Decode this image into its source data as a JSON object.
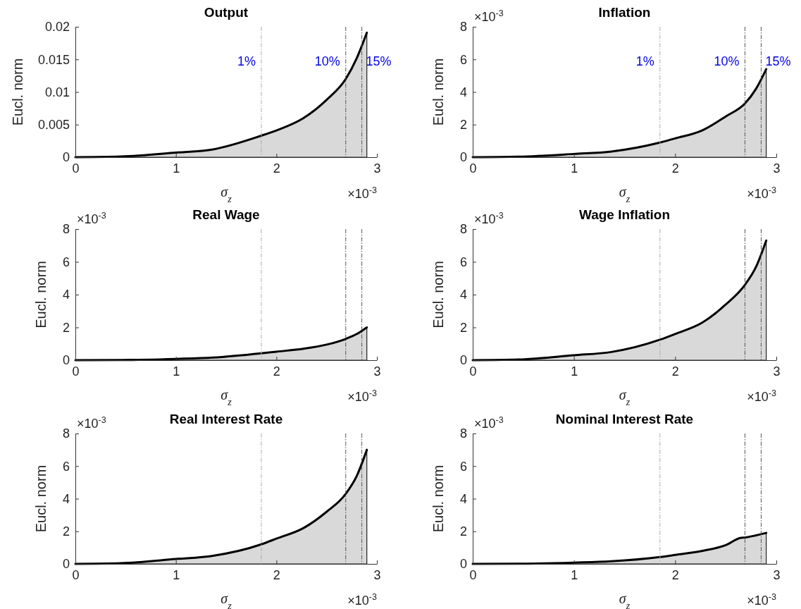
{
  "chart_data": [
    {
      "type": "area",
      "title": "Output",
      "xlabel": "σ$_{z}$",
      "ylabel": "Eucl. norm",
      "xlim": [
        0,
        3
      ],
      "xticks": [
        0,
        1,
        2,
        3
      ],
      "ylim": [
        0,
        0.02
      ],
      "yticks": [
        0,
        0.005,
        0.01,
        0.015,
        0.02
      ],
      "grid": false,
      "x": [
        0,
        0.45,
        1,
        1.37,
        1.85,
        2.0,
        2.27,
        2.5,
        2.69,
        2.8,
        2.9
      ],
      "series": [
        {
          "color": "#d9d9d9",
          "values": [
            0,
            0.0001,
            0.0007,
            0.0012,
            0.0033,
            0.0041,
            0.006,
            0.0088,
            0.012,
            0.0152,
            0.0191
          ]
        }
      ],
      "ref_lines": [
        {
          "axis": "x",
          "value": 1.85,
          "color": "#aaaaaa",
          "line_style": "dashed"
        },
        {
          "axis": "x",
          "value": 2.69,
          "color": "#555555",
          "line_style": "dashed"
        },
        {
          "axis": "x",
          "value": 2.85,
          "color": "#555555",
          "line_style": "dashed"
        }
      ],
      "annotations": [
        "×10$^{-3}$",
        "1%",
        "10%",
        "15%"
      ]
    },
    {
      "type": "area",
      "title": "Inflation",
      "xlabel": "σ$_{z}$",
      "ylabel": "Eucl. norm",
      "xlim": [
        0,
        3
      ],
      "xticks": [
        0,
        1,
        2,
        3
      ],
      "ylim": [
        0,
        8
      ],
      "yticks": [
        0,
        2,
        4,
        6,
        8
      ],
      "grid": false,
      "x": [
        0,
        0.45,
        1,
        1.37,
        1.85,
        2.0,
        2.27,
        2.5,
        2.69,
        2.8,
        2.9
      ],
      "series": [
        {
          "color": "#d9d9d9",
          "values": [
            0,
            0.03,
            0.2,
            0.35,
            0.9,
            1.15,
            1.65,
            2.5,
            3.3,
            4.2,
            5.4
          ]
        }
      ],
      "ref_lines": [
        {
          "axis": "x",
          "value": 1.85,
          "color": "#aaaaaa",
          "line_style": "dashed"
        },
        {
          "axis": "x",
          "value": 2.69,
          "color": "#555555",
          "line_style": "dashed"
        },
        {
          "axis": "x",
          "value": 2.85,
          "color": "#555555",
          "line_style": "dashed"
        }
      ],
      "annotations": [
        "×10$^{-3}$",
        "×10$^{-3}$",
        "1%",
        "10%",
        "15%"
      ]
    },
    {
      "type": "area",
      "title": "Real Wage",
      "xlabel": "σ$_{z}$",
      "ylabel": "Eucl. norm",
      "xlim": [
        0,
        3
      ],
      "xticks": [
        0,
        1,
        2,
        3
      ],
      "ylim": [
        0,
        8
      ],
      "yticks": [
        0,
        2,
        4,
        6,
        8
      ],
      "grid": false,
      "x": [
        0,
        0.45,
        1,
        1.37,
        1.85,
        2.0,
        2.27,
        2.5,
        2.69,
        2.8,
        2.9
      ],
      "series": [
        {
          "color": "#d9d9d9",
          "values": [
            0,
            0.01,
            0.08,
            0.16,
            0.42,
            0.52,
            0.7,
            0.95,
            1.3,
            1.6,
            2.0
          ]
        }
      ],
      "ref_lines": [
        {
          "axis": "x",
          "value": 1.85,
          "color": "#aaaaaa",
          "line_style": "dashed"
        },
        {
          "axis": "x",
          "value": 2.69,
          "color": "#555555",
          "line_style": "dashed"
        },
        {
          "axis": "x",
          "value": 2.85,
          "color": "#555555",
          "line_style": "dashed"
        }
      ],
      "annotations": [
        "×10$^{-3}$",
        "×10$^{-3}$"
      ]
    },
    {
      "type": "area",
      "title": "Wage Inflation",
      "xlabel": "σ$_{z}$",
      "ylabel": "Eucl. norm",
      "xlim": [
        0,
        3
      ],
      "xticks": [
        0,
        1,
        2,
        3
      ],
      "ylim": [
        0,
        8
      ],
      "yticks": [
        0,
        2,
        4,
        6,
        8
      ],
      "grid": false,
      "x": [
        0,
        0.45,
        1,
        1.37,
        1.85,
        2.0,
        2.27,
        2.5,
        2.69,
        2.8,
        2.9
      ],
      "series": [
        {
          "color": "#d9d9d9",
          "values": [
            0,
            0.04,
            0.3,
            0.5,
            1.25,
            1.6,
            2.3,
            3.4,
            4.6,
            5.7,
            7.3
          ]
        }
      ],
      "ref_lines": [
        {
          "axis": "x",
          "value": 1.85,
          "color": "#aaaaaa",
          "line_style": "dashed"
        },
        {
          "axis": "x",
          "value": 2.69,
          "color": "#555555",
          "line_style": "dashed"
        },
        {
          "axis": "x",
          "value": 2.85,
          "color": "#555555",
          "line_style": "dashed"
        }
      ],
      "annotations": [
        "×10$^{-3}$",
        "×10$^{-3}$"
      ]
    },
    {
      "type": "area",
      "title": "Real Interest Rate",
      "xlabel": "σ$_{z}$",
      "ylabel": "Eucl. norm",
      "xlim": [
        0,
        3
      ],
      "xticks": [
        0,
        1,
        2,
        3
      ],
      "ylim": [
        0,
        8
      ],
      "yticks": [
        0,
        2,
        4,
        6,
        8
      ],
      "grid": false,
      "x": [
        0,
        0.45,
        1,
        1.37,
        1.85,
        2.0,
        2.27,
        2.5,
        2.69,
        2.8,
        2.9
      ],
      "series": [
        {
          "color": "#d9d9d9",
          "values": [
            0,
            0.04,
            0.3,
            0.5,
            1.2,
            1.55,
            2.2,
            3.2,
            4.3,
            5.4,
            7.0
          ]
        }
      ],
      "ref_lines": [
        {
          "axis": "x",
          "value": 1.85,
          "color": "#aaaaaa",
          "line_style": "dashed"
        },
        {
          "axis": "x",
          "value": 2.69,
          "color": "#555555",
          "line_style": "dashed"
        },
        {
          "axis": "x",
          "value": 2.85,
          "color": "#555555",
          "line_style": "dashed"
        }
      ],
      "annotations": [
        "×10$^{-3}$",
        "×10$^{-3}$"
      ]
    },
    {
      "type": "area",
      "title": "Nominal Interest Rate",
      "xlabel": "σ$_{z}$",
      "ylabel": "Eucl. norm",
      "xlim": [
        0,
        3
      ],
      "xticks": [
        0,
        1,
        2,
        3
      ],
      "ylim": [
        0,
        8
      ],
      "yticks": [
        0,
        2,
        4,
        6,
        8
      ],
      "grid": false,
      "x": [
        0,
        0.45,
        1,
        1.37,
        1.85,
        2.0,
        2.27,
        2.5,
        2.65,
        2.69,
        2.8,
        2.9
      ],
      "series": [
        {
          "color": "#d9d9d9",
          "values": [
            0,
            0.01,
            0.08,
            0.16,
            0.42,
            0.55,
            0.8,
            1.15,
            1.6,
            1.62,
            1.75,
            1.9
          ]
        }
      ],
      "ref_lines": [
        {
          "axis": "x",
          "value": 1.85,
          "color": "#aaaaaa",
          "line_style": "dashed"
        },
        {
          "axis": "x",
          "value": 2.69,
          "color": "#555555",
          "line_style": "dashed"
        },
        {
          "axis": "x",
          "value": 2.85,
          "color": "#555555",
          "line_style": "dashed"
        }
      ],
      "annotations": [
        "×10$^{-3}$",
        "×10$^{-3}$"
      ]
    }
  ]
}
